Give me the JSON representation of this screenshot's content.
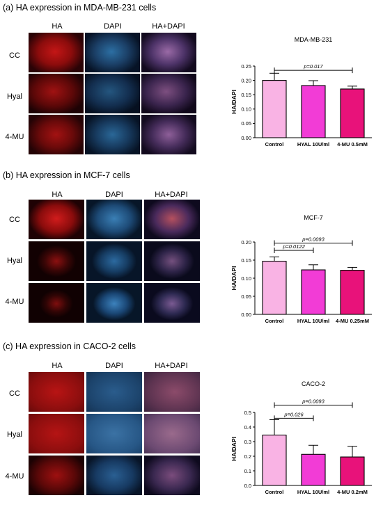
{
  "panels": [
    {
      "title": "(a) HA expression in MDA-MB-231 cells",
      "column_headers": [
        "HA",
        "DAPI",
        "HA+DAPI"
      ],
      "row_labels": [
        "CC",
        "Hyal",
        "4-MU"
      ]
    },
    {
      "title": "(b) HA expression in MCF-7 cells",
      "column_headers": [
        "HA",
        "DAPI",
        "HA+DAPI"
      ],
      "row_labels": [
        "CC",
        "Hyal",
        "4-MU"
      ]
    },
    {
      "title": "(c) HA expression in CACO-2 cells",
      "column_headers": [
        "HA",
        "DAPI",
        "HA+DAPI"
      ],
      "row_labels": [
        "CC",
        "Hyal",
        "4-MU"
      ]
    }
  ],
  "colors": {
    "control": "#f9b3e4",
    "hyal": "#f23cd6",
    "mu": "#e8127a",
    "ha_channel": "#c41616",
    "dapi_channel": "#2c6fa3",
    "merge_channel": "#9a6aa6"
  },
  "chart_data": [
    {
      "type": "bar",
      "title": "MDA-MB-231",
      "ylabel": "HA/DAPI",
      "xlabel": "",
      "categories": [
        "Control",
        "HYAL 10U/ml",
        "4-MU 0.5mM"
      ],
      "values": [
        0.2,
        0.182,
        0.17
      ],
      "errors": [
        0.025,
        0.017,
        0.01
      ],
      "ylim": [
        0,
        0.25
      ],
      "yticks": [
        "0.00",
        "0.05",
        "0.10",
        "0.15",
        "0.20",
        "0.25"
      ],
      "ytick_values": [
        0,
        0.05,
        0.1,
        0.15,
        0.2,
        0.25
      ],
      "annotations": [
        {
          "from": 0,
          "to": 2,
          "level": 0.235,
          "text": "p=0.017"
        }
      ]
    },
    {
      "type": "bar",
      "title": "MCF-7",
      "ylabel": "HA/DAPI",
      "xlabel": "",
      "categories": [
        "Control",
        "HYAL 10U/ml",
        "4-MU 0.25mM"
      ],
      "values": [
        0.147,
        0.123,
        0.122
      ],
      "errors": [
        0.012,
        0.014,
        0.008
      ],
      "ylim": [
        0,
        0.2
      ],
      "yticks": [
        "0.00",
        "0.05",
        "0.10",
        "0.15",
        "0.20"
      ],
      "ytick_values": [
        0,
        0.05,
        0.1,
        0.15,
        0.2
      ],
      "annotations": [
        {
          "from": 0,
          "to": 1,
          "level": 0.177,
          "text": "p=0.0122"
        },
        {
          "from": 0,
          "to": 2,
          "level": 0.197,
          "text": "p=0.0093"
        }
      ]
    },
    {
      "type": "bar",
      "title": "CACO-2",
      "ylabel": "HA/DAPI",
      "xlabel": "",
      "categories": [
        "Control",
        "HYAL 10U/ml",
        "4-MU 0.2mM"
      ],
      "values": [
        0.345,
        0.213,
        0.195
      ],
      "errors": [
        0.105,
        0.062,
        0.073
      ],
      "ylim": [
        0,
        0.5
      ],
      "yticks": [
        "0.0",
        "0.1",
        "0.2",
        "0.3",
        "0.4",
        "0.5"
      ],
      "ytick_values": [
        0,
        0.1,
        0.2,
        0.3,
        0.4,
        0.5
      ],
      "annotations": [
        {
          "from": 0,
          "to": 1,
          "level": 0.46,
          "text": "p=0.026"
        },
        {
          "from": 0,
          "to": 2,
          "level": 0.55,
          "text": "p=0.0093"
        }
      ]
    }
  ]
}
